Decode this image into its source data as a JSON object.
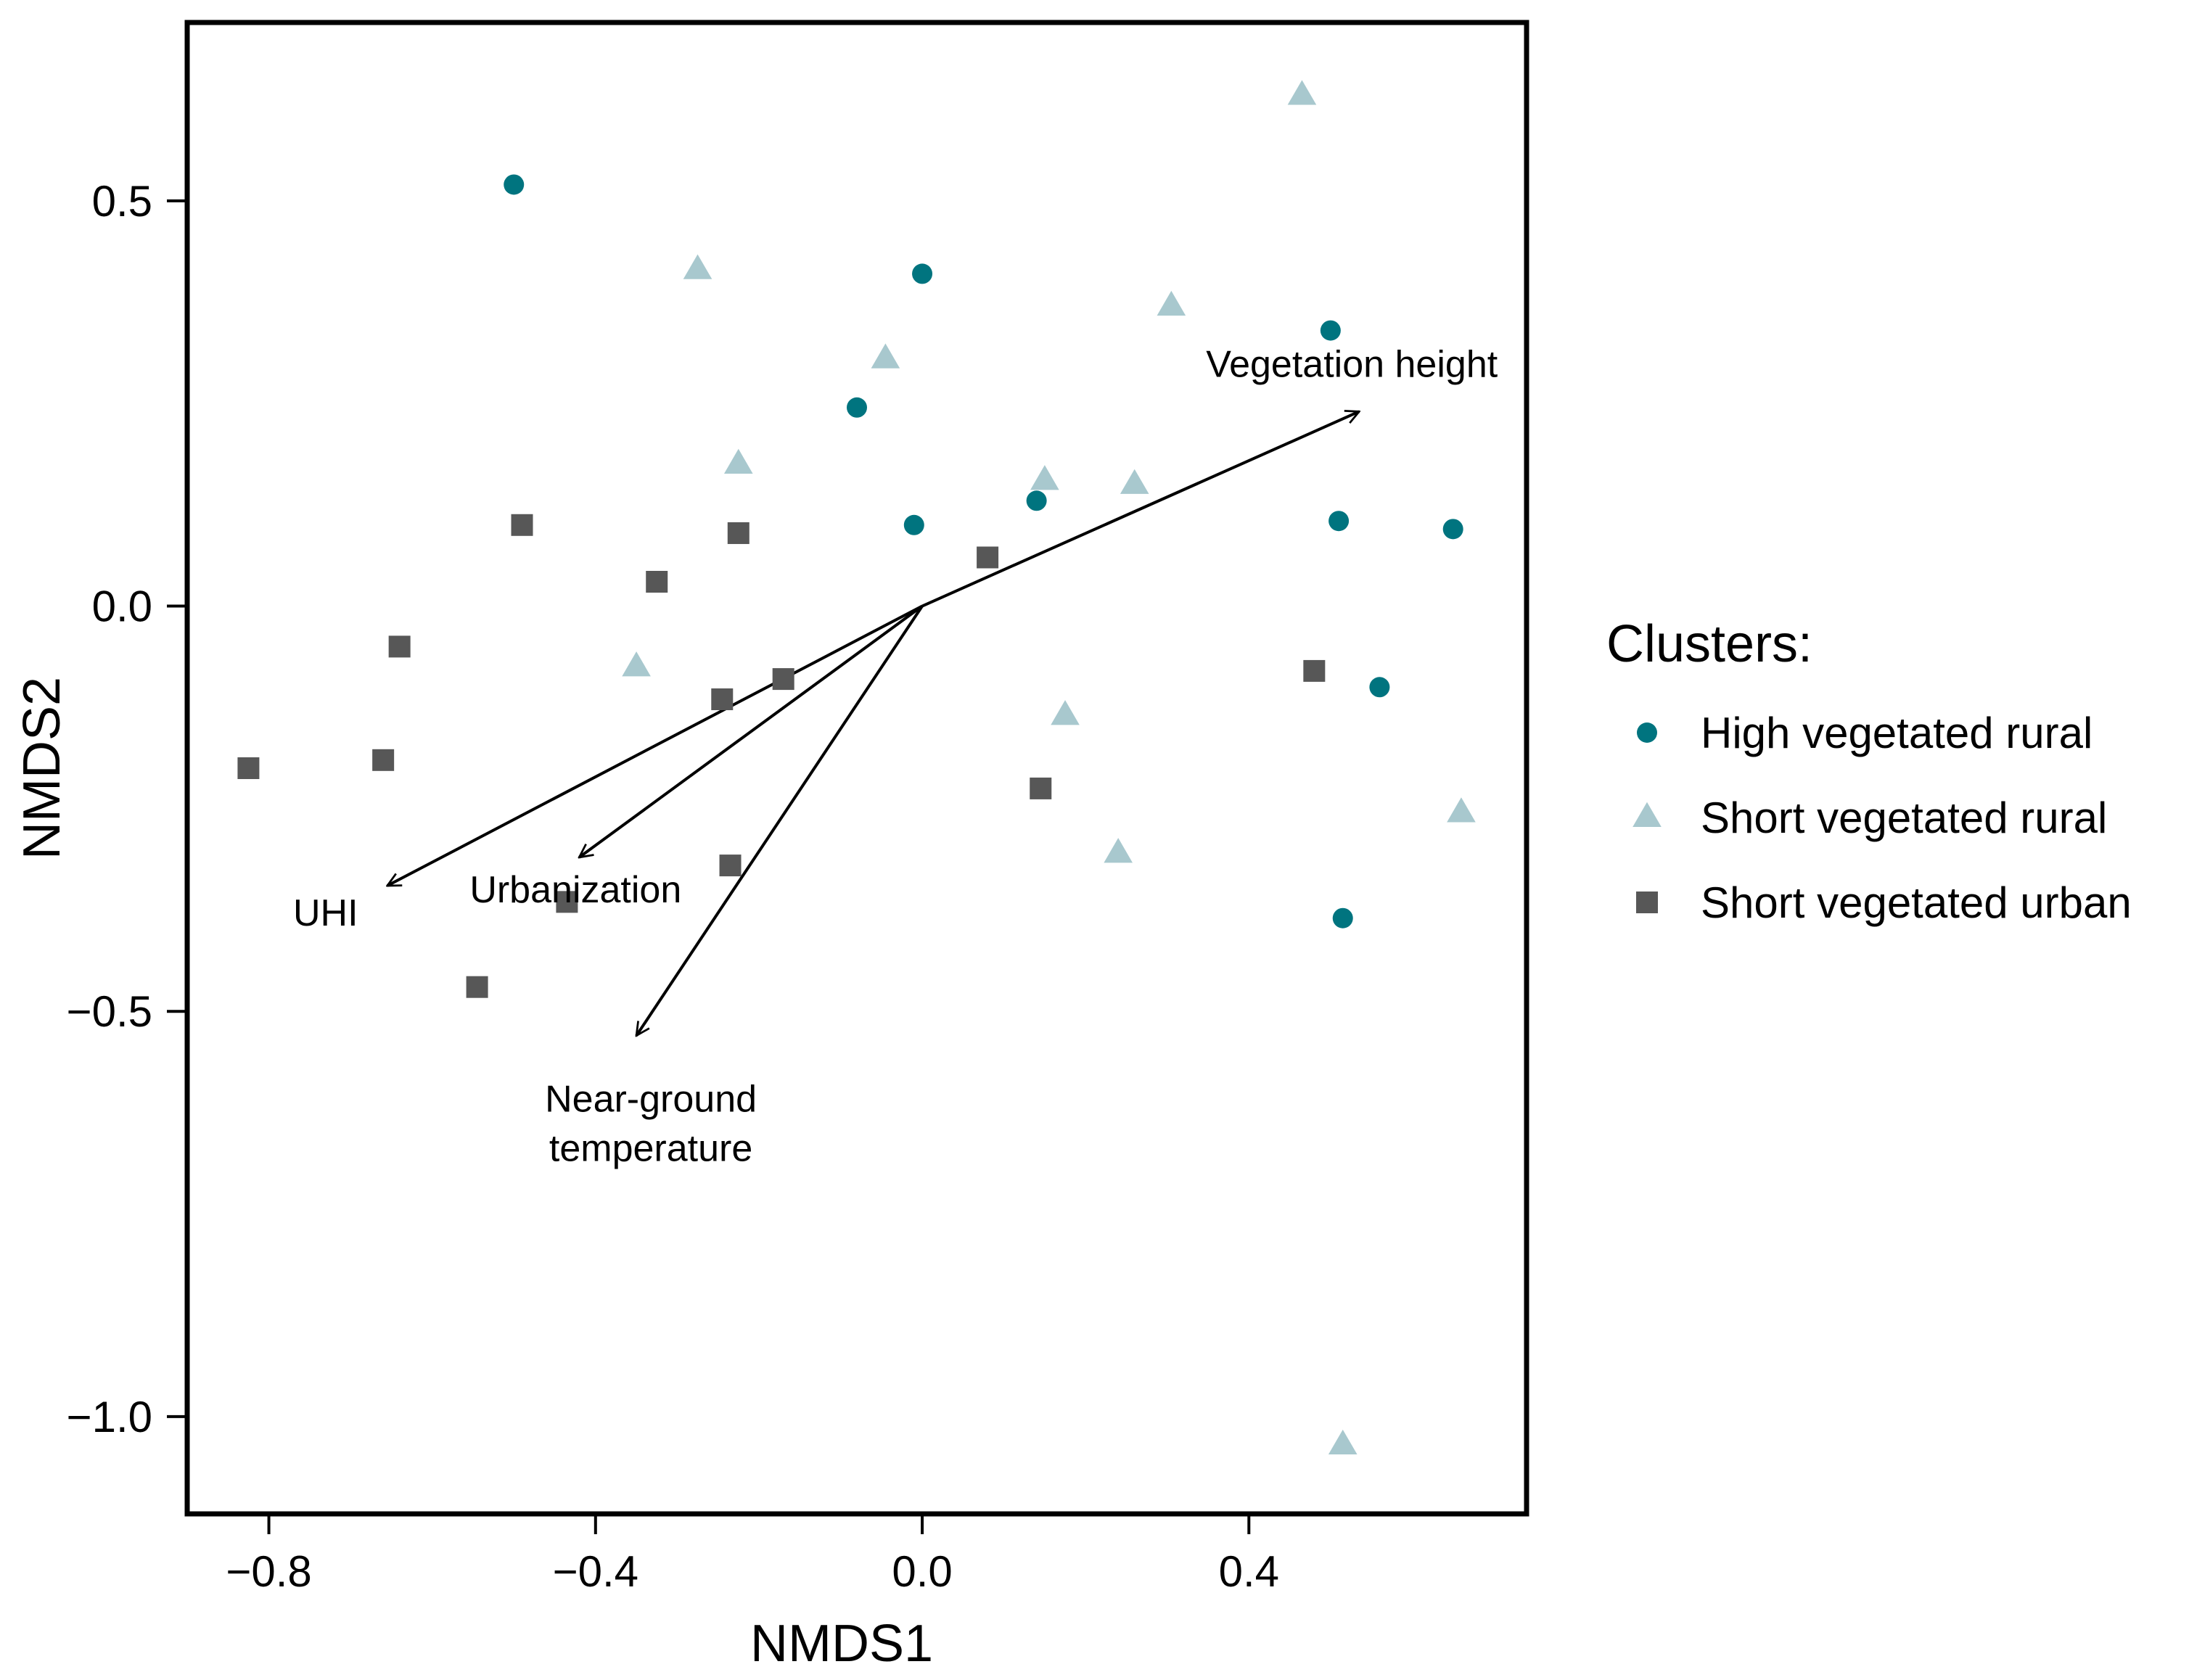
{
  "chart_data": {
    "type": "scatter",
    "xlabel": "NMDS1",
    "ylabel": "NMDS2",
    "xlim": [
      -0.9,
      0.74
    ],
    "ylim": [
      -1.12,
      0.72
    ],
    "x_ticks": [
      -0.8,
      -0.4,
      0.0,
      0.4
    ],
    "x_tick_labels": [
      "−0.8",
      "−0.4",
      "0.0",
      "0.4"
    ],
    "y_ticks": [
      0.5,
      0.0,
      -0.5,
      -1.0
    ],
    "y_tick_labels": [
      "0.5",
      "0.0",
      "−0.5",
      "−1.0"
    ],
    "legend": {
      "title": "Clusters:",
      "position": "right"
    },
    "series": [
      {
        "name": "High vegetated rural",
        "marker": "circle",
        "color": "#00747F",
        "points": [
          {
            "x": -0.5,
            "y": 0.52
          },
          {
            "x": 0.0,
            "y": 0.41
          },
          {
            "x": -0.08,
            "y": 0.245
          },
          {
            "x": 0.5,
            "y": 0.34
          },
          {
            "x": -0.01,
            "y": 0.1
          },
          {
            "x": 0.14,
            "y": 0.13
          },
          {
            "x": 0.51,
            "y": 0.105
          },
          {
            "x": 0.65,
            "y": 0.095
          },
          {
            "x": 0.56,
            "y": -0.1
          },
          {
            "x": 0.515,
            "y": -0.385
          }
        ]
      },
      {
        "name": "Short vegetated rural",
        "marker": "triangle",
        "color": "#A8C8CE",
        "points": [
          {
            "x": 0.465,
            "y": 0.63
          },
          {
            "x": -0.275,
            "y": 0.415
          },
          {
            "x": 0.305,
            "y": 0.37
          },
          {
            "x": -0.045,
            "y": 0.305
          },
          {
            "x": -0.225,
            "y": 0.175
          },
          {
            "x": 0.15,
            "y": 0.155
          },
          {
            "x": 0.26,
            "y": 0.15
          },
          {
            "x": -0.35,
            "y": -0.075
          },
          {
            "x": 0.175,
            "y": -0.135
          },
          {
            "x": 0.24,
            "y": -0.305
          },
          {
            "x": 0.66,
            "y": -0.255
          },
          {
            "x": 0.515,
            "y": -1.035
          }
        ]
      },
      {
        "name": "Short vegetated urban",
        "marker": "square",
        "color": "#575757",
        "points": [
          {
            "x": -0.49,
            "y": 0.1
          },
          {
            "x": -0.225,
            "y": 0.09
          },
          {
            "x": -0.325,
            "y": 0.03
          },
          {
            "x": 0.08,
            "y": 0.06
          },
          {
            "x": -0.64,
            "y": -0.05
          },
          {
            "x": -0.245,
            "y": -0.115
          },
          {
            "x": -0.17,
            "y": -0.09
          },
          {
            "x": 0.48,
            "y": -0.08
          },
          {
            "x": -0.825,
            "y": -0.2
          },
          {
            "x": -0.66,
            "y": -0.19
          },
          {
            "x": 0.145,
            "y": -0.225
          },
          {
            "x": -0.235,
            "y": -0.32
          },
          {
            "x": -0.435,
            "y": -0.365
          },
          {
            "x": -0.545,
            "y": -0.47
          }
        ]
      }
    ],
    "arrows": [
      {
        "label": "Vegetation height",
        "x": 0.535,
        "y": 0.24
      },
      {
        "label": "UHI",
        "x": -0.655,
        "y": -0.345
      },
      {
        "label": "Urbanization",
        "x": -0.42,
        "y": -0.31
      },
      {
        "label": "Near-ground temperature",
        "lines": [
          "Near-ground",
          "temperature"
        ],
        "x": -0.35,
        "y": -0.53
      }
    ]
  }
}
